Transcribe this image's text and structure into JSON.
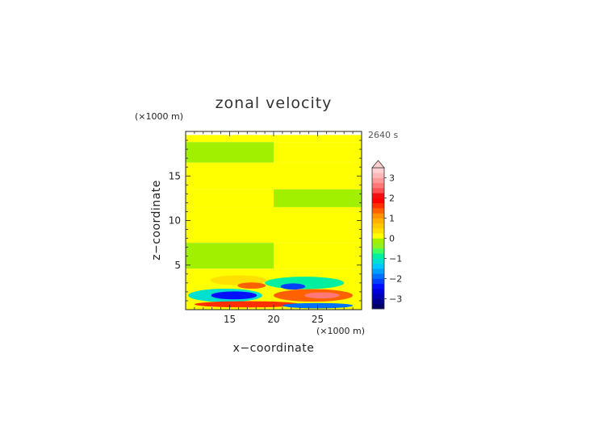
{
  "chart_data": {
    "type": "heatmap",
    "title": "zonal velocity",
    "xlabel": "x−coordinate",
    "ylabel": "z−coordinate",
    "x_unit": "(×1000 m)",
    "y_unit": "(×1000 m)",
    "time_label": "2640 s",
    "xlim": [
      10,
      30
    ],
    "ylim": [
      0,
      20
    ],
    "x_ticks": [
      15,
      20,
      25
    ],
    "y_ticks": [
      5,
      10,
      15
    ],
    "grid": false,
    "legend": "right",
    "colorbar": {
      "levels": [
        -3.5,
        -3.25,
        -3,
        -2.75,
        -2.5,
        -2.25,
        -2,
        -1.75,
        -1.5,
        -1.25,
        -1,
        -0.75,
        -0.5,
        -0.25,
        0,
        0.25,
        0.5,
        0.75,
        1,
        1.25,
        1.5,
        1.75,
        2,
        2.25,
        2.5,
        2.75,
        3,
        3.25,
        3.5
      ],
      "tick_labels": [
        "3",
        "2",
        "1",
        "0",
        "−1",
        "−2",
        "−3"
      ],
      "tick_values": [
        3,
        2,
        1,
        0,
        -1,
        -2,
        -3
      ],
      "extend": "max",
      "colors": [
        "#000066",
        "#00008c",
        "#0000b4",
        "#0000dc",
        "#0010ff",
        "#0040ff",
        "#0070ff",
        "#00a0ff",
        "#00c8ff",
        "#00e0d0",
        "#00f0a0",
        "#40ff60",
        "#90f020",
        "#a0f000",
        "#ffff00",
        "#ffe000",
        "#ffc800",
        "#ffb000",
        "#ff9000",
        "#ff6000",
        "#ff3000",
        "#ff0000",
        "#f01010",
        "#ff5050",
        "#ff7878",
        "#ff9898",
        "#ffb8b8",
        "#ffd0d0"
      ]
    },
    "field": {
      "rows": [
        {
          "z_range": [
            18.8,
            19.6
          ],
          "left": 0.15,
          "right": 0.15
        },
        {
          "z_range": [
            16.5,
            18.8
          ],
          "left": -0.15,
          "right": 0.15
        },
        {
          "z_range": [
            13.5,
            16.5
          ],
          "left": 0.15,
          "right": 0.15
        },
        {
          "z_range": [
            11.5,
            13.5
          ],
          "left": 0.15,
          "right": -0.15
        },
        {
          "z_range": [
            7.5,
            11.5
          ],
          "left": 0.15,
          "right": 0.15
        },
        {
          "z_range": [
            4.6,
            7.5
          ],
          "left": -0.15,
          "right": 0.15
        },
        {
          "z_range": [
            0,
            4.6
          ],
          "left": 0.15,
          "right": 0.15
        }
      ],
      "features": [
        {
          "x": 16,
          "z": 3.3,
          "rx": 3.2,
          "rz": 0.55,
          "value": 0.4
        },
        {
          "x": 17.5,
          "z": 2.7,
          "rx": 1.6,
          "rz": 0.35,
          "value": 1.3
        },
        {
          "x": 14.5,
          "z": 1.6,
          "rx": 4.2,
          "rz": 0.75,
          "value": -1.2
        },
        {
          "x": 15.5,
          "z": 1.6,
          "rx": 2.6,
          "rz": 0.45,
          "value": -2.3
        },
        {
          "x": 17,
          "z": 0.6,
          "rx": 6,
          "rz": 0.35,
          "value": 1.5
        },
        {
          "x": 23.5,
          "z": 3.0,
          "rx": 4.5,
          "rz": 0.7,
          "value": -1.0
        },
        {
          "x": 22.2,
          "z": 2.6,
          "rx": 1.4,
          "rz": 0.35,
          "value": -2.2
        },
        {
          "x": 24.5,
          "z": 1.6,
          "rx": 4.5,
          "rz": 0.7,
          "value": 1.3
        },
        {
          "x": 25.5,
          "z": 1.6,
          "rx": 2,
          "rz": 0.35,
          "value": 2.6
        },
        {
          "x": 25,
          "z": 0.45,
          "rx": 4,
          "rz": 0.3,
          "value": -1.8
        }
      ]
    }
  }
}
